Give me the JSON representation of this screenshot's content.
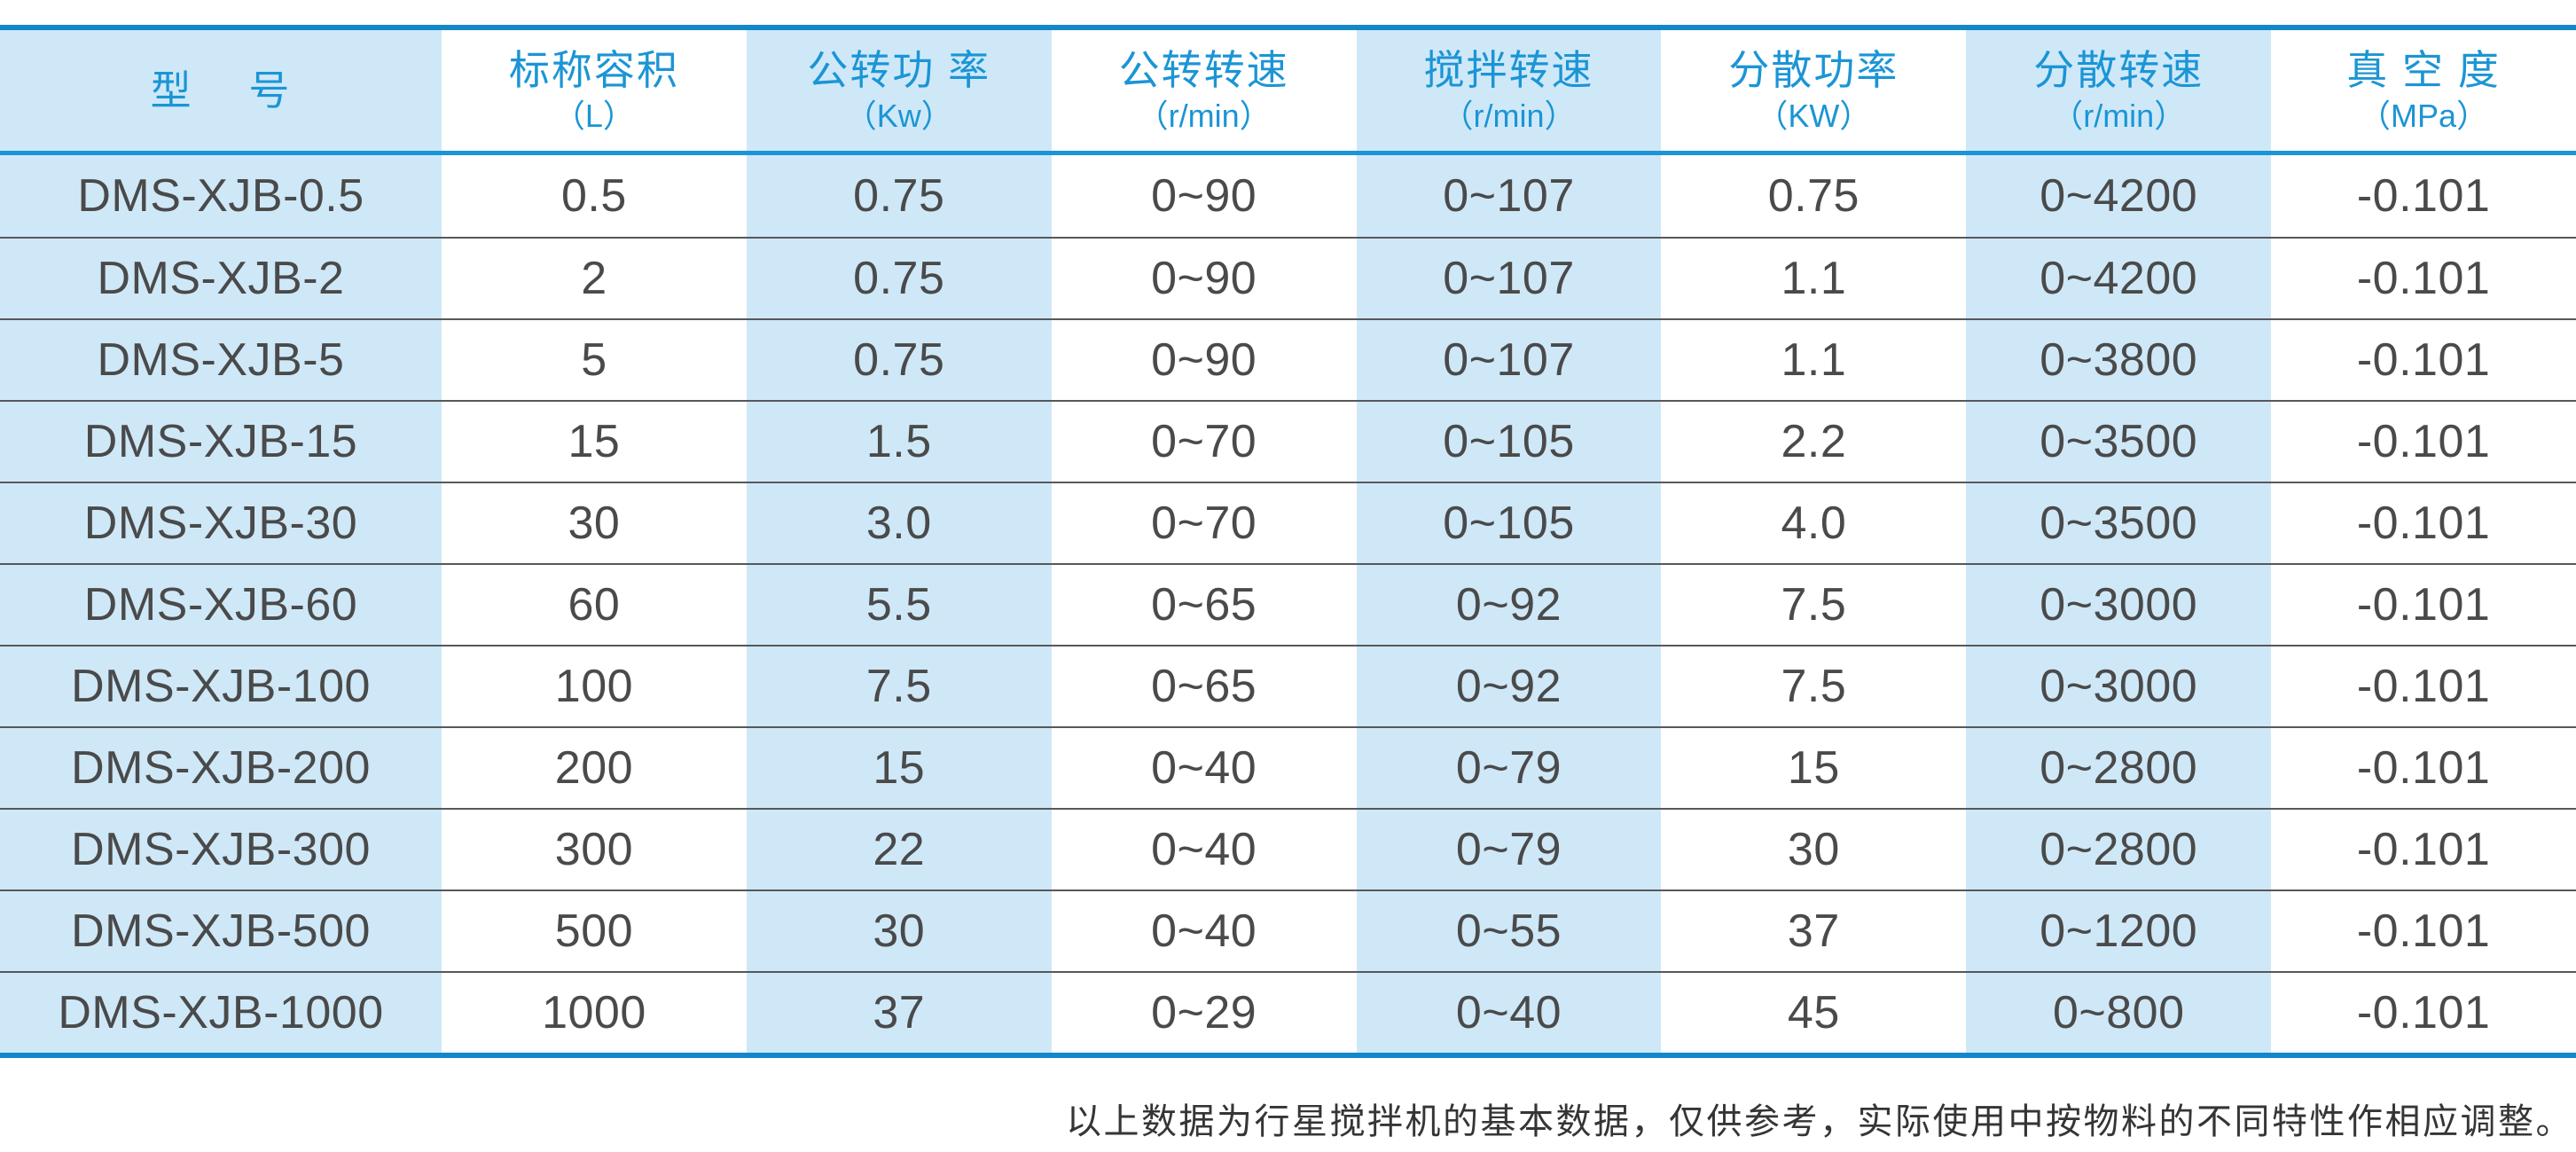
{
  "table": {
    "columns": [
      {
        "title": "型　 号",
        "unit": ""
      },
      {
        "title": "标称容积",
        "unit": "（L）"
      },
      {
        "title": "公转功 率",
        "unit": "（Kw）"
      },
      {
        "title": "公转转速",
        "unit": "（r/min）"
      },
      {
        "title": "搅拌转速",
        "unit": "（r/min）"
      },
      {
        "title": "分散功率",
        "unit": "（KW）"
      },
      {
        "title": "分散转速",
        "unit": "（r/min）"
      },
      {
        "title": "真 空 度",
        "unit": "（MPa）"
      }
    ],
    "rows": [
      [
        "DMS-XJB-0.5",
        "0.5",
        "0.75",
        "0~90",
        "0~107",
        "0.75",
        "0~4200",
        "-0.101"
      ],
      [
        "DMS-XJB-2",
        "2",
        "0.75",
        "0~90",
        "0~107",
        "1.1",
        "0~4200",
        "-0.101"
      ],
      [
        "DMS-XJB-5",
        "5",
        "0.75",
        "0~90",
        "0~107",
        "1.1",
        "0~3800",
        "-0.101"
      ],
      [
        "DMS-XJB-15",
        "15",
        "1.5",
        "0~70",
        "0~105",
        "2.2",
        "0~3500",
        "-0.101"
      ],
      [
        "DMS-XJB-30",
        "30",
        "3.0",
        "0~70",
        "0~105",
        "4.0",
        "0~3500",
        "-0.101"
      ],
      [
        "DMS-XJB-60",
        "60",
        "5.5",
        "0~65",
        "0~92",
        "7.5",
        "0~3000",
        "-0.101"
      ],
      [
        "DMS-XJB-100",
        "100",
        "7.5",
        "0~65",
        "0~92",
        "7.5",
        "0~3000",
        "-0.101"
      ],
      [
        "DMS-XJB-200",
        "200",
        "15",
        "0~40",
        "0~79",
        "15",
        "0~2800",
        "-0.101"
      ],
      [
        "DMS-XJB-300",
        "300",
        "22",
        "0~40",
        "0~79",
        "30",
        "0~2800",
        "-0.101"
      ],
      [
        "DMS-XJB-500",
        "500",
        "30",
        "0~40",
        "0~55",
        "37",
        "0~1200",
        "-0.101"
      ],
      [
        "DMS-XJB-1000",
        "1000",
        "37",
        "0~29",
        "0~40",
        "45",
        "0~800",
        "-0.101"
      ]
    ]
  },
  "footer": {
    "note": "以上数据为行星搅拌机的基本数据，仅供参考，实际使用中按物料的不同特性作相应调整。"
  },
  "colors": {
    "line_blue": "#1287c9",
    "header_text_blue": "#1b95d5",
    "cell_light_blue": "#cfe8f8",
    "body_text": "#4a4a4a",
    "row_separator": "#57585a",
    "footer_text": "#353535"
  }
}
